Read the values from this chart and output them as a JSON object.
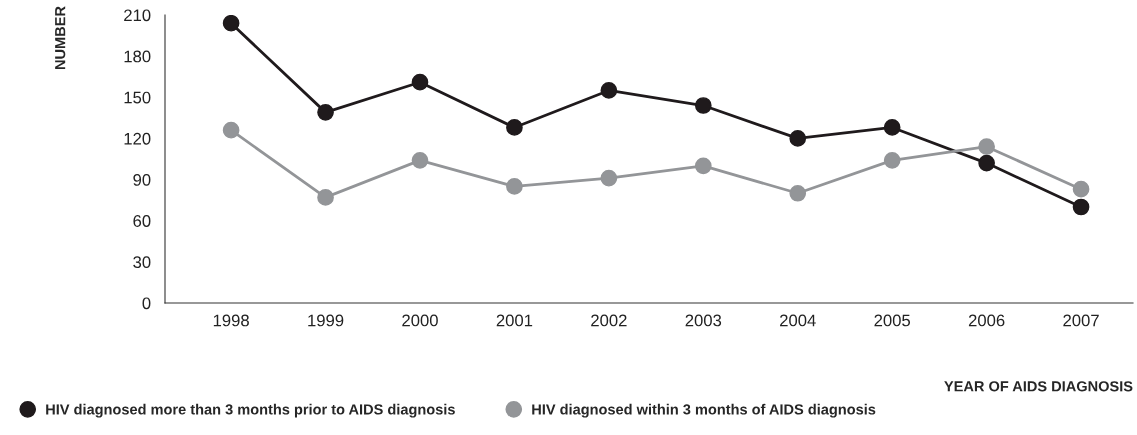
{
  "chart_data": {
    "type": "line",
    "xlabel": "YEAR OF AIDS DIAGNOSIS",
    "ylabel": "NUMBER",
    "categories": [
      "1998",
      "1999",
      "2000",
      "2001",
      "2002",
      "2003",
      "2004",
      "2005",
      "2006",
      "2007"
    ],
    "series": [
      {
        "name": "HIV diagnosed more than 3 months prior to AIDS diagnosis",
        "color": "#1f1a1c",
        "values": [
          204,
          139,
          161,
          128,
          155,
          144,
          120,
          128,
          102,
          70
        ]
      },
      {
        "name": "HIV diagnosed within 3 months of AIDS diagnosis",
        "color": "#939598",
        "values": [
          126,
          77,
          104,
          85,
          91,
          100,
          80,
          104,
          114,
          83
        ]
      }
    ],
    "ylim": [
      0,
      210
    ],
    "yticks": [
      0,
      30,
      60,
      90,
      120,
      150,
      180,
      210
    ],
    "grid": false,
    "legend": "bottom left",
    "marker": "circle",
    "line_style": "solid"
  }
}
